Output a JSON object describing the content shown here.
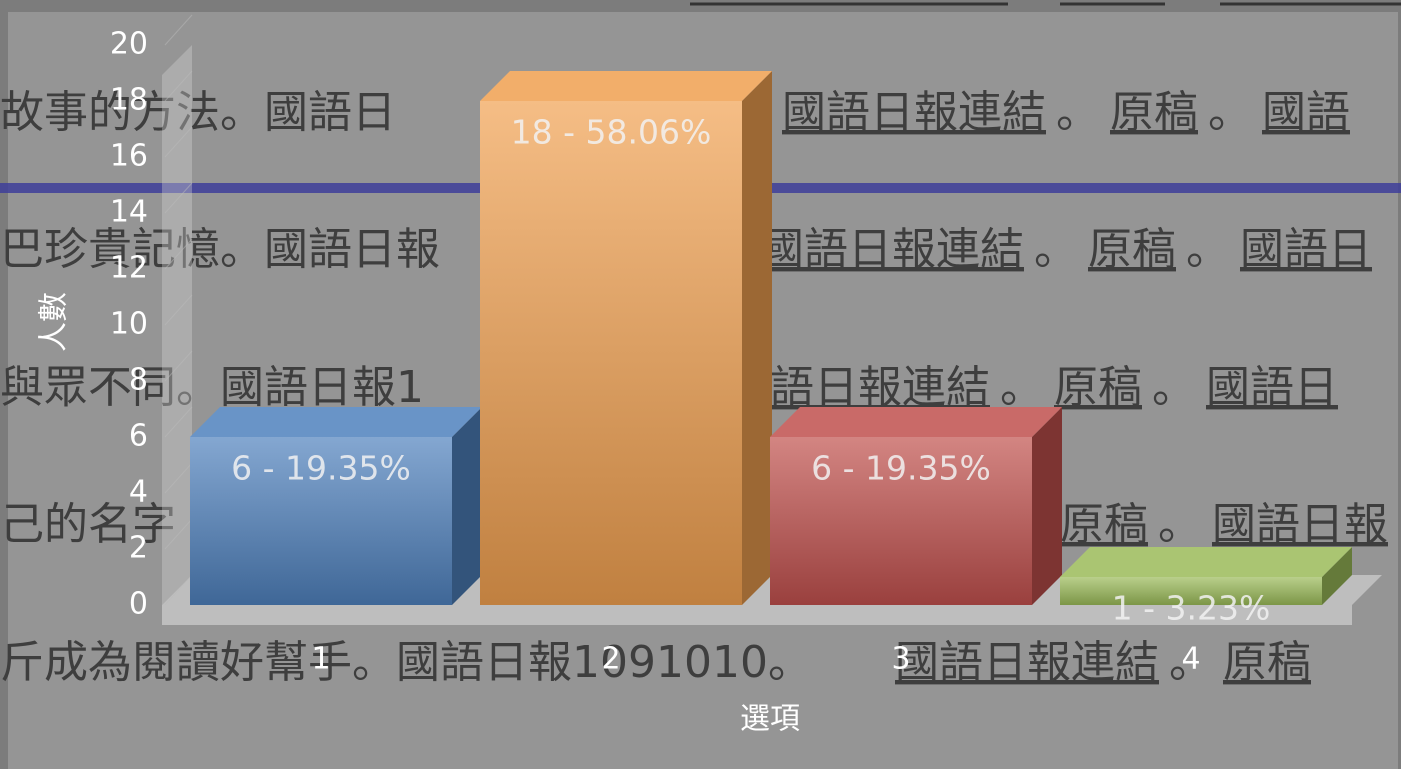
{
  "background_text": {
    "separator": "。",
    "lines": [
      {
        "left": "故事的方法。國語日",
        "links": [
          "國語日報連結",
          "原稿",
          "國語"
        ]
      },
      {
        "left": "巴珍貴記憶。國語日報",
        "links": [
          "國語日報連結",
          "原稿",
          "國語日"
        ]
      },
      {
        "left": "與眾不同。國語日報1",
        "links": [
          "語日報連結",
          "原稿",
          "國語日"
        ]
      },
      {
        "left": "己的名字",
        "links": [
          "原稿",
          "國語日報"
        ]
      },
      {
        "left": "斤成為閱讀好幫手。國語日報1091010。",
        "links": [
          "國語日報連結",
          "原稿"
        ]
      }
    ]
  },
  "chart_data": {
    "type": "bar3d",
    "xlabel": "選項",
    "ylabel": "人數",
    "categories": [
      "1",
      "2",
      "3",
      "4"
    ],
    "values": [
      6,
      18,
      6,
      1
    ],
    "value_labels": [
      "6 - 19.35%",
      "18 - 58.06%",
      "6 - 19.35%",
      "1 - 3.23%"
    ],
    "colors": [
      "#4f81bd",
      "#f0a050",
      "#c0504d",
      "#9bbb59"
    ],
    "ylim": [
      0,
      20
    ],
    "yticks": [
      0,
      2,
      4,
      6,
      8,
      10,
      12,
      14,
      16,
      18,
      20
    ]
  }
}
